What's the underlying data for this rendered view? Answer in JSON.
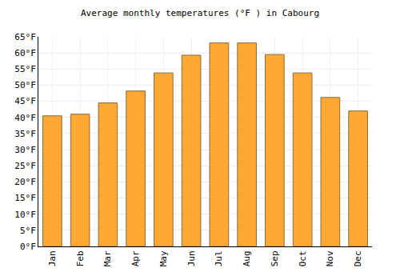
{
  "chart_data": {
    "type": "bar",
    "title": "Average monthly temperatures (°F ) in Cabourg",
    "categories": [
      "Jan",
      "Feb",
      "Mar",
      "Apr",
      "May",
      "Jun",
      "Jul",
      "Aug",
      "Sep",
      "Oct",
      "Nov",
      "Dec"
    ],
    "values": [
      40.5,
      41,
      44.5,
      48.2,
      53.8,
      59.3,
      63.1,
      63.1,
      59.5,
      53.8,
      46.2,
      42
    ],
    "color": "#ffa834",
    "ylim": [
      0,
      65
    ],
    "yticks": [
      {
        "value": 0,
        "label": "0°F"
      },
      {
        "value": 5,
        "label": "5°F"
      },
      {
        "value": 10,
        "label": "10°F"
      },
      {
        "value": 15,
        "label": "15°F"
      },
      {
        "value": 20,
        "label": "20°F"
      },
      {
        "value": 25,
        "label": "25°F"
      },
      {
        "value": 30,
        "label": "30°F"
      },
      {
        "value": 35,
        "label": "35°F"
      },
      {
        "value": 40,
        "label": "40°F"
      },
      {
        "value": 45,
        "label": "45°F"
      },
      {
        "value": 50,
        "label": "50°F"
      },
      {
        "value": 55,
        "label": "55°F"
      },
      {
        "value": 60,
        "label": "60°F"
      },
      {
        "value": 65,
        "label": "65°F"
      }
    ],
    "grid": true
  }
}
